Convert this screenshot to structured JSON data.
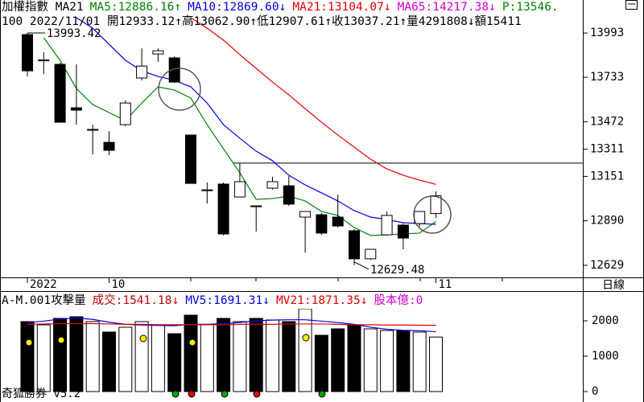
{
  "header": {
    "line1": [
      {
        "text": "加權指數 MA21",
        "color": "#000000"
      },
      {
        "text": "MA5:12886.16↑",
        "color": "#008000"
      },
      {
        "text": "MA10:12869.60↓",
        "color": "#0000e0"
      },
      {
        "text": "MA21:13104.07↓",
        "color": "#e00000"
      },
      {
        "text": "MA65:14217.38↓",
        "color": "#d000d0"
      },
      {
        "text": "P:13546.",
        "color": "#008000"
      }
    ],
    "line2": "100 2022/11/01 開12933.12↑高13062.90↑低12907.61↑收13037.21↑量4291808↓額15411"
  },
  "chart_data": [
    {
      "type": "candlestick",
      "categories": [
        "2022",
        null,
        null,
        null,
        null,
        "10",
        null,
        null,
        null,
        null,
        null,
        null,
        null,
        null,
        null,
        null,
        null,
        null,
        null,
        null,
        null,
        null,
        null,
        null,
        null,
        "11"
      ],
      "open": [
        13984,
        13830,
        13809,
        13554,
        13422,
        13351,
        13455,
        13729,
        13870,
        13847,
        13394,
        13067,
        13106,
        13030,
        12978,
        13082,
        13096,
        12912,
        12926,
        12912,
        12832,
        12667,
        12808,
        12865,
        12874,
        12933.12
      ],
      "high": [
        13993.42,
        13880,
        13818,
        13809,
        13455,
        13417,
        13597,
        13903,
        13903,
        13856,
        13394,
        13115,
        13115,
        13228,
        12978,
        13148,
        13153,
        12945,
        12936,
        13044,
        12841,
        12723,
        12945,
        12874,
        12945,
        13062.9
      ],
      "low": [
        13738,
        13752,
        13469,
        13455,
        13280,
        13276,
        13446,
        13715,
        13823,
        13700,
        13110,
        12992,
        12804,
        13030,
        12827,
        13073,
        12978,
        12704,
        12808,
        12851,
        12629.48,
        12660,
        12804,
        12723,
        12856,
        12907.61
      ],
      "close": [
        13771,
        13835,
        13469,
        13540,
        13427,
        13304,
        13582,
        13799,
        13889,
        13705,
        13110,
        13072,
        12813,
        13120,
        12973,
        13120,
        12988,
        12945,
        12818,
        12860,
        12667,
        12723,
        12922,
        12789,
        12945,
        13037.21
      ],
      "series": [
        {
          "color": "#008000",
          "values": [
            null,
            13965,
            13833,
            13667,
            13573,
            13526,
            13479,
            13582,
            13677,
            13658,
            13611,
            13455,
            13313,
            13172,
            13016,
            13021,
            13035,
            13007,
            12945,
            12922,
            12851,
            12804,
            12808,
            12813,
            12818,
            12886.16
          ]
        },
        {
          "color": "#0000e0",
          "values": [
            null,
            null,
            null,
            14083,
            14021,
            13927,
            13833,
            13771,
            13738,
            13715,
            13677,
            13582,
            13455,
            13375,
            13299,
            13243,
            13158,
            13101,
            13054,
            13007,
            12950,
            12912,
            12898,
            12879,
            12874,
            12869.6
          ]
        },
        {
          "color": "#e00000",
          "values": [
            null,
            null,
            null,
            null,
            null,
            null,
            null,
            null,
            null,
            null,
            14083,
            14021,
            13951,
            13866,
            13785,
            13705,
            13630,
            13549,
            13469,
            13394,
            13323,
            13252,
            13195,
            13158,
            13129,
            13104.07
          ]
        }
      ],
      "high_label": "13993.42",
      "low_label": "12629.48",
      "reference_line": 13229,
      "ylim": [
        12558,
        14102
      ],
      "yticks": [
        13993,
        13733,
        13472,
        13311,
        13151,
        12890,
        12629
      ],
      "period_label": "日線"
    },
    {
      "type": "bar",
      "legend": [
        {
          "text": "A-M.001攻擊量",
          "color": "#000000"
        },
        {
          "text": "成交:1541.18↓",
          "color": "#c00000"
        },
        {
          "text": "MV5:1691.31↓",
          "color": "#0000e0"
        },
        {
          "text": "MV21:1871.35↓",
          "color": "#e00000"
        },
        {
          "text": "股本億:0",
          "color": "#d000d0"
        }
      ],
      "values": [
        1977,
        1886,
        2068,
        2114,
        1977,
        1682,
        1818,
        1977,
        1886,
        1636,
        2159,
        1886,
        2068,
        1977,
        2068,
        2023,
        1977,
        2341,
        1591,
        1773,
        1886,
        1773,
        1727,
        1727,
        1682,
        1541.18
      ],
      "series": [
        {
          "color": "#0000e0",
          "values": [
            1950,
            1990,
            2050,
            2080,
            2040,
            1960,
            1900,
            1880,
            1870,
            1860,
            1900,
            1900,
            1920,
            1950,
            2000,
            2020,
            2030,
            2030,
            1990,
            1950,
            1900,
            1820,
            1760,
            1730,
            1720,
            1691.31
          ]
        },
        {
          "color": "#e00000",
          "values": [
            1900,
            1910,
            1920,
            1920,
            1920,
            1910,
            1900,
            1900,
            1890,
            1890,
            1890,
            1890,
            1890,
            1900,
            1900,
            1900,
            1910,
            1910,
            1910,
            1900,
            1890,
            1890,
            1880,
            1880,
            1875,
            1871.35
          ]
        }
      ],
      "ylim": [
        -295,
        2818
      ],
      "yticks": [
        0,
        1000,
        2000
      ]
    }
  ],
  "footer": "奇狐勝券 v5.2"
}
